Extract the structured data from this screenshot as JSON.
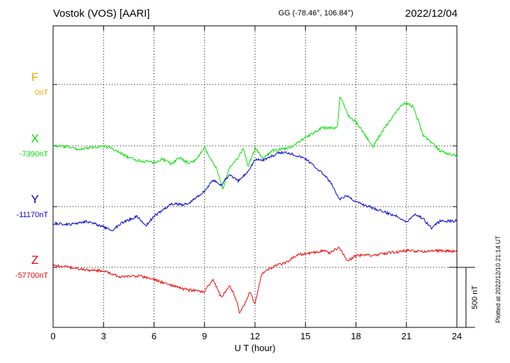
{
  "header": {
    "station": "Vostok (VOS)  [AARI]",
    "coords": "GG (-78.46°, 106.84°)",
    "date": "2022/12/04"
  },
  "footer": {
    "plotted_at": "Plotted at 2022/12/10 21:14 UT"
  },
  "scale_bar": {
    "label": "500 nT",
    "value_nT": 500
  },
  "chart_data": {
    "type": "line",
    "xlabel": "U T (hour)",
    "xlim": [
      0,
      24
    ],
    "xticks": [
      "0",
      "3",
      "6",
      "9",
      "12",
      "15",
      "18",
      "21",
      "24"
    ],
    "grid": true,
    "units": "nT",
    "panels": [
      {
        "name": "F",
        "baseline_label": "0nT",
        "color": "#f5a500",
        "x": [],
        "values": []
      },
      {
        "name": "X",
        "baseline_label": "-7390nT",
        "color": "#00e000",
        "x": [
          0,
          1,
          1.5,
          2,
          3,
          3.5,
          4,
          4.5,
          5,
          6,
          6.5,
          7,
          7.5,
          8,
          8.5,
          9,
          9.3,
          9.7,
          10.1,
          10.5,
          11,
          11.3,
          11.6,
          12,
          12.5,
          13,
          14,
          15,
          16,
          16.9,
          17.05,
          17.5,
          18,
          18.5,
          19,
          19.5,
          20,
          20.5,
          20.9,
          21.4,
          22,
          23,
          24
        ],
        "values": [
          0,
          -10,
          -30,
          -20,
          0,
          -20,
          -60,
          -100,
          -120,
          -140,
          -110,
          -150,
          -100,
          -140,
          -120,
          -10,
          -100,
          -180,
          -360,
          -170,
          -100,
          -20,
          -170,
          -20,
          -110,
          -40,
          -20,
          70,
          150,
          150,
          420,
          260,
          200,
          100,
          -10,
          110,
          210,
          310,
          360,
          330,
          90,
          -40,
          -90
        ]
      },
      {
        "name": "Y",
        "baseline_label": "-11170nT",
        "color": "#0000cc",
        "x": [
          0,
          1,
          2,
          3,
          3.5,
          4,
          5,
          5.5,
          6,
          7,
          8,
          9,
          9.5,
          10,
          10.5,
          11,
          11.5,
          12,
          12.5,
          13,
          13.5,
          14,
          15,
          16,
          16.5,
          17,
          17.5,
          18,
          19,
          20,
          20.5,
          21,
          21.5,
          22,
          22.5,
          23,
          24
        ],
        "values": [
          -140,
          -150,
          -120,
          -170,
          -200,
          -140,
          -80,
          -160,
          -80,
          20,
          20,
          130,
          220,
          180,
          270,
          210,
          280,
          390,
          390,
          420,
          450,
          450,
          400,
          280,
          200,
          60,
          90,
          40,
          -10,
          -60,
          -80,
          -130,
          -60,
          -100,
          -180,
          -120,
          -120
        ]
      },
      {
        "name": "Z",
        "baseline_label": "-57700nT",
        "color": "#ee0000",
        "x": [
          0,
          1,
          2,
          3,
          4,
          5,
          6,
          7,
          8,
          9,
          9.5,
          10,
          10.5,
          10.9,
          11.1,
          11.4,
          11.7,
          12,
          12.4,
          13,
          14,
          14.5,
          15,
          16,
          16.5,
          17,
          17.5,
          18,
          19,
          20,
          21,
          22,
          23,
          24
        ],
        "values": [
          15,
          0,
          -20,
          -30,
          -80,
          -70,
          -100,
          -150,
          -190,
          -200,
          -100,
          -250,
          -150,
          -270,
          -380,
          -300,
          -200,
          -310,
          -50,
          0,
          50,
          110,
          110,
          140,
          120,
          170,
          50,
          100,
          100,
          120,
          140,
          130,
          140,
          130
        ]
      }
    ]
  }
}
